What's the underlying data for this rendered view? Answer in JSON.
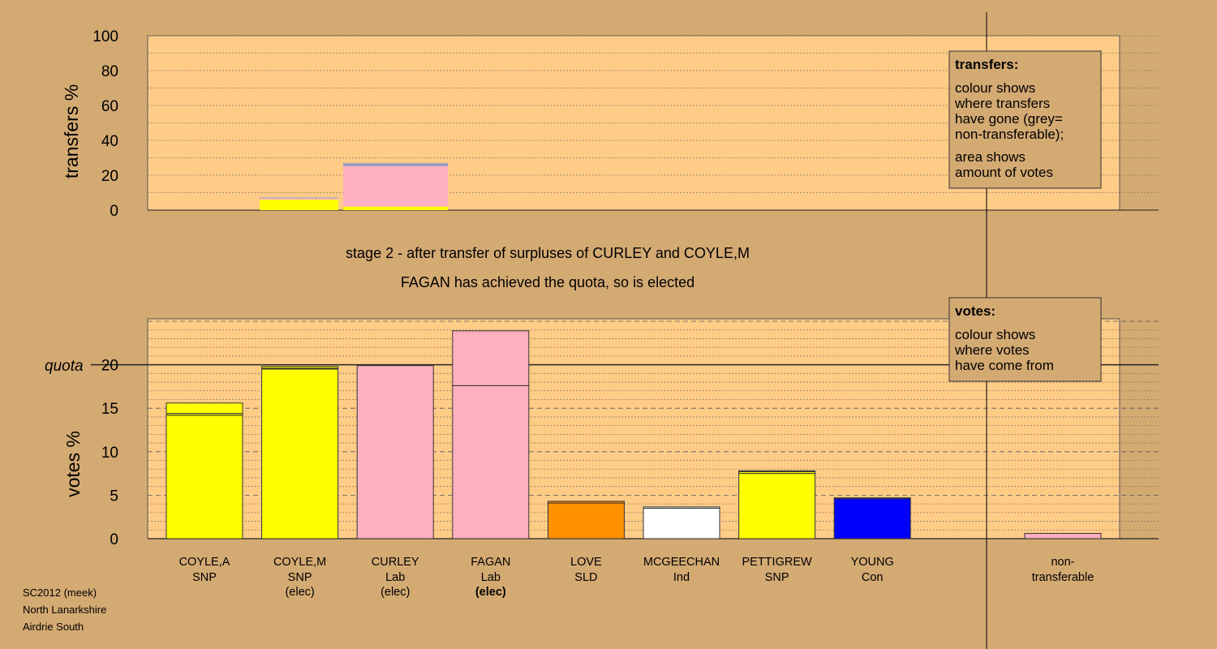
{
  "colors": {
    "background": "#d4aa73",
    "plot": "#ffcc88",
    "SNP": "#ffff00",
    "Lab": "#ffb0c0",
    "SLD": "#ff9000",
    "Ind": "#ffffff",
    "Con": "#0000ff",
    "transfer_blue": "#8899cc",
    "grey": "#b0b0b0"
  },
  "transfers_panel": {
    "ylabel": "transfers %",
    "ticks": [
      "0",
      "20",
      "40",
      "60",
      "80",
      "100"
    ],
    "ylim": [
      0,
      100
    ]
  },
  "votes_panel": {
    "ylabel": "votes %",
    "ticks": [
      "0",
      "5",
      "10",
      "15",
      "20"
    ],
    "quota_label": "quota",
    "quota_value": 20,
    "ylim": [
      0,
      25
    ]
  },
  "stage_text": {
    "line1": "stage 2 - after transfer of surpluses of CURLEY and COYLE,M",
    "line2": "FAGAN has achieved the quota, so is elected"
  },
  "transfers_legend": {
    "title": "transfers:",
    "lines1": [
      "colour shows",
      "where transfers",
      "have gone (grey=",
      "non-transferable);"
    ],
    "lines2": [
      "area shows",
      "amount of votes"
    ]
  },
  "votes_legend": {
    "title": "votes:",
    "lines": [
      "colour shows",
      "where votes",
      "have come from"
    ]
  },
  "footer": {
    "line1": "SC2012 (meek)",
    "line2": "North Lanarkshire",
    "line3": "Airdrie South"
  },
  "chart_data": [
    {
      "type": "bar",
      "title": "",
      "ylabel": "transfers %",
      "ylim": [
        0,
        100
      ],
      "note": "stacked bars showing where the surpluses of COYLE,M and CURLEY were transferred",
      "bars": [
        {
          "candidate": "COYLE,M",
          "segments": [
            {
              "colour": "#ffff00",
              "value": 6
            },
            {
              "colour": "#ffb0c0",
              "value": 0.8
            },
            {
              "colour": "#b0b0b0",
              "value": 0.6
            }
          ]
        },
        {
          "candidate": "CURLEY",
          "segments": [
            {
              "colour": "#ffff00",
              "value": 2
            },
            {
              "colour": "#ffb0c0",
              "value": 23.3
            },
            {
              "colour": "#8899cc",
              "value": 1.2
            },
            {
              "colour": "#b0b0b0",
              "value": 0.6
            }
          ]
        }
      ]
    },
    {
      "type": "bar",
      "title": "",
      "ylabel": "votes %",
      "ylim": [
        0,
        25
      ],
      "quota": 20,
      "candidates": [
        {
          "name": "COYLE,A",
          "party": "SNP",
          "status": "",
          "colour": "#ffff00",
          "segments": [
            14.2,
            0.2,
            1.2
          ]
        },
        {
          "name": "COYLE,M",
          "party": "SNP",
          "status": "(elec)",
          "colour": "#ffff00",
          "segments": [
            19.5,
            0.1,
            0.2
          ]
        },
        {
          "name": "CURLEY",
          "party": "Lab",
          "status": "(elec)",
          "colour": "#ffb0c0",
          "segments": [
            19.9
          ]
        },
        {
          "name": "FAGAN",
          "party": "Lab",
          "status": "(elec)",
          "colour": "#ffb0c0",
          "segments": [
            17.6,
            6.3
          ]
        },
        {
          "name": "LOVE",
          "party": "SLD",
          "status": "",
          "colour": "#ff9000",
          "segments": [
            4.1,
            0.2
          ]
        },
        {
          "name": "MCGEECHAN",
          "party": "Ind",
          "status": "",
          "colour": "#ffffff",
          "segments": [
            3.5,
            0.15
          ]
        },
        {
          "name": "PETTIGREW",
          "party": "SNP",
          "status": "",
          "colour": "#ffff00",
          "segments": [
            7.5,
            0.2,
            0.1
          ]
        },
        {
          "name": "YOUNG",
          "party": "Con",
          "status": "",
          "colour": "#0000ff",
          "segments": [
            4.6,
            0.1
          ]
        }
      ],
      "non_transferable": {
        "label": [
          "non-",
          "transferable"
        ],
        "colour": "#ffb0c0",
        "value": 0.6
      }
    }
  ]
}
